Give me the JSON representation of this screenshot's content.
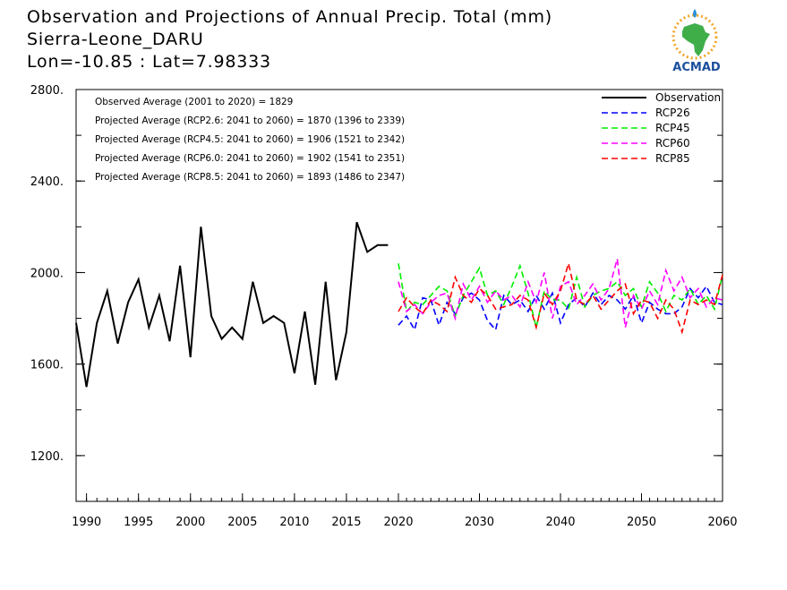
{
  "header": {
    "title": "Observation and Projections of Annual Precip. Total (mm)",
    "location": "Sierra-Leone_DARU",
    "coords": "Lon=-10.85 : Lat=7.98333"
  },
  "logo": {
    "text": "ACMAD",
    "icon": "africa-map-logo-icon",
    "colors": {
      "blue": "#1b4f9c",
      "green": "#3fae49",
      "orange": "#f2a52a"
    }
  },
  "annotations": [
    "Observed Average (2001 to 2020) = 1829",
    "Projected Average (RCP2.6: 2041 to 2060) = 1870 (1396 to 2339)",
    "Projected Average (RCP4.5: 2041 to 2060) = 1906 (1521 to 2342)",
    "Projected Average (RCP6.0: 2041 to 2060) = 1902 (1541 to 2351)",
    "Projected Average (RCP8.5: 2041 to 2060) = 1893 (1486 to 2347)"
  ],
  "chart_data": {
    "type": "line",
    "ylim": [
      1000,
      2800
    ],
    "yticks": [
      1200,
      1600,
      2000,
      2400,
      2800
    ],
    "ytick_labels": [
      "1200.",
      "1600.",
      "2000.",
      "2400.",
      "2800."
    ],
    "xticks": [
      1990,
      1995,
      2000,
      2005,
      2010,
      2015,
      2020,
      2030,
      2040,
      2050,
      2060
    ],
    "xtick_labels": [
      "1990",
      "1995",
      "2000",
      "2005",
      "2010",
      "2015",
      "2020",
      "2030",
      "2040",
      "2050",
      "2060"
    ],
    "legend_position": "top-right",
    "series": [
      {
        "name": "Observation",
        "color": "#000000",
        "style": "solid",
        "x": [
          1989,
          1990,
          1991,
          1992,
          1993,
          1994,
          1995,
          1996,
          1997,
          1998,
          1999,
          2000,
          2001,
          2002,
          2003,
          2004,
          2005,
          2006,
          2007,
          2008,
          2009,
          2010,
          2011,
          2012,
          2013,
          2014,
          2015,
          2016,
          2017,
          2018,
          2019
        ],
        "values": [
          1780,
          1500,
          1780,
          1920,
          1690,
          1870,
          1970,
          1760,
          1900,
          1700,
          2030,
          1630,
          2200,
          1810,
          1710,
          1760,
          1710,
          1960,
          1780,
          1810,
          1780,
          1560,
          1830,
          1510,
          1960,
          1530,
          1740,
          2220,
          2090,
          2120,
          2120
        ]
      },
      {
        "name": "RCP26",
        "color": "#0000ff",
        "style": "dashed",
        "x": [
          2020,
          2021,
          2022,
          2023,
          2024,
          2025,
          2026,
          2027,
          2028,
          2029,
          2030,
          2031,
          2032,
          2033,
          2034,
          2035,
          2036,
          2037,
          2038,
          2039,
          2040,
          2041,
          2042,
          2043,
          2044,
          2045,
          2046,
          2047,
          2048,
          2049,
          2050,
          2051,
          2052,
          2053,
          2054,
          2055,
          2056,
          2057,
          2058,
          2059,
          2060
        ],
        "values": [
          1770,
          1810,
          1750,
          1890,
          1880,
          1770,
          1870,
          1820,
          1890,
          1910,
          1880,
          1790,
          1750,
          1900,
          1860,
          1880,
          1830,
          1900,
          1840,
          1910,
          1780,
          1860,
          1890,
          1850,
          1910,
          1860,
          1900,
          1880,
          1840,
          1900,
          1780,
          1870,
          1840,
          1820,
          1820,
          1850,
          1930,
          1890,
          1940,
          1870,
          1860
        ]
      },
      {
        "name": "RCP45",
        "color": "#00ee00",
        "style": "dashed",
        "x": [
          2020,
          2021,
          2022,
          2023,
          2024,
          2025,
          2026,
          2027,
          2028,
          2029,
          2030,
          2031,
          2032,
          2033,
          2034,
          2035,
          2036,
          2037,
          2038,
          2039,
          2040,
          2041,
          2042,
          2043,
          2044,
          2045,
          2046,
          2047,
          2048,
          2049,
          2050,
          2051,
          2052,
          2053,
          2054,
          2055,
          2056,
          2057,
          2058,
          2059,
          2060
        ],
        "values": [
          2040,
          1830,
          1870,
          1860,
          1900,
          1940,
          1920,
          1810,
          1900,
          1960,
          2020,
          1900,
          1920,
          1860,
          1940,
          2030,
          1910,
          1760,
          1920,
          1880,
          1880,
          1840,
          1980,
          1850,
          1900,
          1920,
          1930,
          1960,
          1900,
          1930,
          1850,
          1960,
          1910,
          1830,
          1900,
          1880,
          1930,
          1860,
          1900,
          1840,
          1990
        ]
      },
      {
        "name": "RCP60",
        "color": "#ff00ff",
        "style": "dashed",
        "x": [
          2020,
          2021,
          2022,
          2023,
          2024,
          2025,
          2026,
          2027,
          2028,
          2029,
          2030,
          2031,
          2032,
          2033,
          2034,
          2035,
          2036,
          2037,
          2038,
          2039,
          2040,
          2041,
          2042,
          2043,
          2044,
          2045,
          2046,
          2047,
          2048,
          2049,
          2050,
          2051,
          2052,
          2053,
          2054,
          2055,
          2056,
          2057,
          2058,
          2059,
          2060
        ],
        "values": [
          1960,
          1830,
          1860,
          1820,
          1870,
          1900,
          1910,
          1800,
          1950,
          1880,
          1940,
          1870,
          1920,
          1880,
          1900,
          1850,
          1960,
          1870,
          2000,
          1800,
          1940,
          1960,
          1860,
          1900,
          1950,
          1880,
          1930,
          2060,
          1760,
          1900,
          1840,
          1920,
          1860,
          2010,
          1920,
          1980,
          1890,
          1930,
          1850,
          1890,
          1880
        ]
      },
      {
        "name": "RCP85",
        "color": "#ff0000",
        "style": "dashed",
        "x": [
          2020,
          2021,
          2022,
          2023,
          2024,
          2025,
          2026,
          2027,
          2028,
          2029,
          2030,
          2031,
          2032,
          2033,
          2034,
          2035,
          2036,
          2037,
          2038,
          2039,
          2040,
          2041,
          2042,
          2043,
          2044,
          2045,
          2046,
          2047,
          2048,
          2049,
          2050,
          2051,
          2052,
          2053,
          2054,
          2055,
          2056,
          2057,
          2058,
          2059,
          2060
        ],
        "values": [
          1830,
          1890,
          1850,
          1820,
          1880,
          1860,
          1830,
          1980,
          1900,
          1870,
          1930,
          1900,
          1840,
          1850,
          1860,
          1900,
          1880,
          1760,
          1910,
          1860,
          1920,
          2040,
          1880,
          1860,
          1900,
          1840,
          1880,
          1920,
          1950,
          1820,
          1880,
          1870,
          1800,
          1880,
          1840,
          1740,
          1880,
          1860,
          1880,
          1860,
          1990
        ]
      }
    ]
  }
}
